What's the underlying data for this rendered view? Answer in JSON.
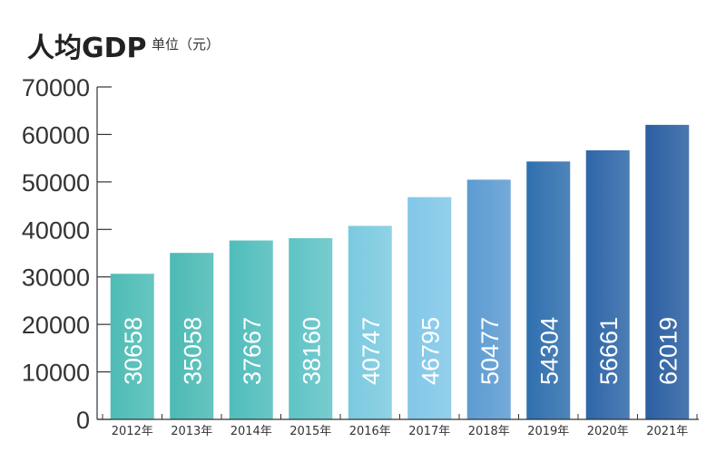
{
  "chart_data": {
    "type": "bar",
    "title": "人均GDP",
    "unit_label": "单位（元）",
    "categories": [
      "2012年",
      "2013年",
      "2014年",
      "2015年",
      "2016年",
      "2017年",
      "2018年",
      "2019年",
      "2020年",
      "2021年"
    ],
    "values": [
      30658,
      35058,
      37667,
      38160,
      40747,
      46795,
      50477,
      54304,
      56661,
      62019
    ],
    "data_labels": [
      "30658",
      "35058",
      "37667",
      "38160",
      "40747",
      "46795",
      "50477",
      "54304",
      "56661",
      "62019"
    ],
    "ylim": [
      0,
      70000
    ],
    "yticks": [
      0,
      10000,
      20000,
      30000,
      40000,
      50000,
      60000,
      70000
    ],
    "ytick_labels": [
      "0",
      "10000",
      "20000",
      "30000",
      "40000",
      "50000",
      "60000",
      "70000"
    ],
    "xlabel": "",
    "ylabel": "",
    "grid": false,
    "legend": "none",
    "bar_colors": [
      "#4dbcb5",
      "#4cbab4",
      "#4fbdbb",
      "#5fc3c6",
      "#7bcae0",
      "#81c7e8",
      "#5c9bd2",
      "#2f6fae",
      "#2e66a8",
      "#2a5fa2"
    ],
    "data_label_color": "#ffffff"
  }
}
